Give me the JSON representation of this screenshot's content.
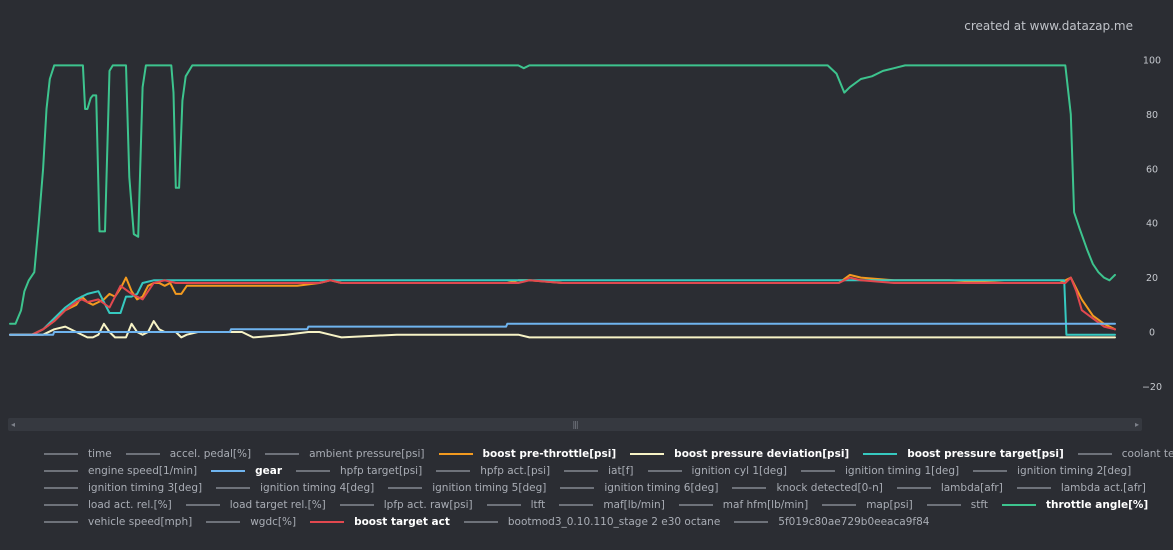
{
  "credit": "created at www.datazap.me",
  "scrollbar": {
    "left_arrow": "◂",
    "right_arrow": "▸",
    "grip": "|||"
  },
  "legend": {
    "rows": [
      [
        {
          "label": "time",
          "active": false,
          "color": "#6e727a"
        },
        {
          "label": "accel. pedal[%]",
          "active": false,
          "color": "#6e727a"
        },
        {
          "label": "ambient pressure[psi]",
          "active": false,
          "color": "#6e727a"
        },
        {
          "label": "boost pre-throttle[psi]",
          "active": true,
          "color": "#f39a1f"
        },
        {
          "label": "boost pressure deviation[psi]",
          "active": true,
          "color": "#f7f3c6"
        },
        {
          "label": "boost pressure target[psi]",
          "active": true,
          "color": "#36c9c0"
        },
        {
          "label": "coolant temp[f]",
          "active": false,
          "color": "#6e727a"
        }
      ],
      [
        {
          "label": "engine speed[1/min]",
          "active": false,
          "color": "#6e727a"
        },
        {
          "label": "gear",
          "active": true,
          "color": "#6fb4ef"
        },
        {
          "label": "hpfp target[psi]",
          "active": false,
          "color": "#6e727a"
        },
        {
          "label": "hpfp act.[psi]",
          "active": false,
          "color": "#6e727a"
        },
        {
          "label": "iat[f]",
          "active": false,
          "color": "#6e727a"
        },
        {
          "label": "ignition cyl 1[deg]",
          "active": false,
          "color": "#6e727a"
        },
        {
          "label": "ignition timing 1[deg]",
          "active": false,
          "color": "#6e727a"
        },
        {
          "label": "ignition timing 2[deg]",
          "active": false,
          "color": "#6e727a"
        }
      ],
      [
        {
          "label": "ignition timing 3[deg]",
          "active": false,
          "color": "#6e727a"
        },
        {
          "label": "ignition timing 4[deg]",
          "active": false,
          "color": "#6e727a"
        },
        {
          "label": "ignition timing 5[deg]",
          "active": false,
          "color": "#6e727a"
        },
        {
          "label": "ignition timing 6[deg]",
          "active": false,
          "color": "#6e727a"
        },
        {
          "label": "knock detected[0-n]",
          "active": false,
          "color": "#6e727a"
        },
        {
          "label": "lambda[afr]",
          "active": false,
          "color": "#6e727a"
        },
        {
          "label": "lambda act.[afr]",
          "active": false,
          "color": "#6e727a"
        }
      ],
      [
        {
          "label": "load act. rel.[%]",
          "active": false,
          "color": "#6e727a"
        },
        {
          "label": "load target rel.[%]",
          "active": false,
          "color": "#6e727a"
        },
        {
          "label": "lpfp act. raw[psi]",
          "active": false,
          "color": "#6e727a"
        },
        {
          "label": "ltft",
          "active": false,
          "color": "#6e727a"
        },
        {
          "label": "maf[lb/min]",
          "active": false,
          "color": "#6e727a"
        },
        {
          "label": "maf hfm[lb/min]",
          "active": false,
          "color": "#6e727a"
        },
        {
          "label": "map[psi]",
          "active": false,
          "color": "#6e727a"
        },
        {
          "label": "stft",
          "active": false,
          "color": "#6e727a"
        },
        {
          "label": "throttle angle[%]",
          "active": true,
          "color": "#3dc48e"
        }
      ],
      [
        {
          "label": "vehicle speed[mph]",
          "active": false,
          "color": "#6e727a"
        },
        {
          "label": "wgdc[%]",
          "active": false,
          "color": "#6e727a"
        },
        {
          "label": "boost target act",
          "active": true,
          "color": "#e2484f"
        },
        {
          "label": "bootmod3_0.10.110_stage 2 e30 octane",
          "active": false,
          "color": "#6e727a"
        },
        {
          "label": "5f019c80ae729b0eeaca9f84",
          "active": false,
          "color": "#6e727a"
        }
      ]
    ]
  },
  "chart_data": {
    "type": "line",
    "title": "",
    "xlabel": "",
    "ylabel": "",
    "x_range": [
      0,
      100
    ],
    "ylim": [
      -30,
      103
    ],
    "y_ticks": [
      100,
      80,
      60,
      40,
      20,
      0,
      -20
    ],
    "y_axis_side": "right",
    "grid": false,
    "legend_position": "bottom",
    "series": [
      {
        "name": "throttle angle[%]",
        "color": "#3dc48e",
        "x": [
          0,
          0.5,
          1.0,
          1.3,
          1.7,
          2.2,
          2.6,
          3.0,
          3.3,
          3.6,
          4.0,
          4.3,
          4.7,
          5.2,
          6.0,
          6.6,
          6.8,
          7.0,
          7.3,
          7.5,
          7.8,
          8.1,
          8.6,
          9.0,
          9.3,
          10.0,
          10.5,
          10.8,
          11.2,
          11.6,
          12.0,
          12.3,
          12.8,
          13.3,
          14.0,
          14.6,
          14.8,
          15.0,
          15.3,
          15.6,
          15.9,
          16.5,
          20,
          30,
          40,
          46,
          46.5,
          47,
          55,
          65,
          74,
          74.8,
          75.5,
          76,
          77,
          78,
          79,
          80,
          81,
          90,
          95.5,
          96,
          96.3,
          96.8,
          97.5,
          98.0,
          98.5,
          99.0,
          99.5,
          100
        ],
        "y": [
          3,
          3,
          8,
          15,
          19,
          22,
          40,
          60,
          82,
          93,
          98,
          98,
          98,
          98,
          98,
          98,
          82,
          82,
          86,
          87,
          87,
          37,
          37,
          96,
          98,
          98,
          98,
          57,
          36,
          35,
          90,
          98,
          98,
          98,
          98,
          98,
          88,
          53,
          53,
          85,
          94,
          98,
          98,
          98,
          98,
          98,
          97,
          98,
          98,
          98,
          98,
          95,
          88,
          90,
          93,
          94,
          96,
          97,
          98,
          98,
          98,
          80,
          44,
          38,
          30,
          25,
          22,
          20,
          19,
          21
        ]
      },
      {
        "name": "boost pre-throttle[psi]",
        "color": "#f39a1f",
        "x": [
          0,
          2,
          3,
          4,
          5,
          6,
          6.5,
          7,
          7.5,
          8,
          8.5,
          9,
          9.5,
          10,
          10.5,
          11,
          11.5,
          12,
          12.5,
          13,
          13.5,
          14,
          14.5,
          15,
          15.5,
          16,
          17,
          19,
          22,
          26,
          28,
          29,
          30,
          35,
          40,
          45,
          46,
          47,
          50,
          60,
          70,
          75,
          76,
          77,
          80,
          85,
          90,
          95,
          96,
          97,
          98,
          99,
          100
        ],
        "y": [
          -1,
          -1,
          1,
          4,
          8,
          10,
          13,
          11,
          10,
          11,
          12,
          14,
          13,
          16,
          20,
          15,
          12,
          13,
          17,
          18,
          18,
          17,
          18,
          14,
          14,
          17,
          17,
          17,
          17,
          17,
          18,
          19,
          18,
          18,
          18,
          18,
          19,
          19,
          18,
          18,
          18,
          18,
          21,
          20,
          19,
          19,
          18,
          18,
          20,
          12,
          6,
          3,
          1
        ]
      },
      {
        "name": "boost pressure target[psi]",
        "color": "#36c9c0",
        "x": [
          0,
          2,
          3,
          4,
          5,
          6,
          7,
          8,
          9,
          10,
          10.5,
          11,
          11.5,
          12,
          13,
          14,
          15,
          20,
          30,
          40,
          50,
          60,
          70,
          80,
          90,
          95,
          95.4,
          95.6,
          100
        ],
        "y": [
          -1,
          -1,
          1,
          5,
          9,
          12,
          14,
          15,
          7,
          7,
          13,
          13,
          14,
          18,
          19,
          19,
          19,
          19,
          19,
          19,
          19,
          19,
          19,
          19,
          19,
          19,
          19,
          -1,
          -1
        ]
      },
      {
        "name": "boost target act",
        "color": "#e2484f",
        "x": [
          0,
          2,
          3,
          4,
          5,
          6,
          6.5,
          7,
          8,
          9,
          10,
          11,
          12,
          13,
          14,
          15,
          17,
          20,
          25,
          28,
          29,
          30,
          35,
          40,
          45,
          46,
          47,
          50,
          60,
          70,
          75,
          76,
          77,
          80,
          90,
          95,
          95.5,
          96,
          96.5,
          97,
          98,
          99,
          100
        ],
        "y": [
          -1,
          -1,
          1,
          4,
          8,
          11,
          12,
          11,
          12,
          9,
          17,
          14,
          12,
          18,
          19,
          18,
          18,
          18,
          18,
          18,
          19,
          18,
          18,
          18,
          18,
          18,
          19,
          18,
          18,
          18,
          18,
          20,
          19,
          18,
          18,
          18,
          18,
          20,
          15,
          8,
          5,
          2,
          1
        ]
      },
      {
        "name": "boost pressure deviation[psi]",
        "color": "#f7f3c6",
        "x": [
          0,
          3,
          4,
          5,
          6,
          7,
          7.5,
          8,
          8.5,
          9,
          9.5,
          10,
          10.5,
          11,
          11.5,
          12,
          12.5,
          13,
          13.5,
          14,
          14.5,
          15,
          15.5,
          16,
          17,
          20,
          21,
          22,
          25,
          27,
          28,
          29,
          30,
          35,
          40,
          45,
          46,
          47,
          50,
          55,
          60,
          70,
          74,
          75,
          80,
          90,
          95,
          100
        ],
        "y": [
          -1,
          -1,
          1,
          2,
          0,
          -2,
          -2,
          -1,
          3,
          0,
          -2,
          -2,
          -2,
          3,
          0,
          -1,
          0,
          4,
          1,
          0,
          0,
          0,
          -2,
          -1,
          0,
          0,
          0,
          -2,
          -1,
          0,
          0,
          -1,
          -2,
          -1,
          -1,
          -1,
          -1,
          -2,
          -2,
          -2,
          -2,
          -2,
          -2,
          -2,
          -2,
          -2,
          -2,
          -2
        ]
      },
      {
        "name": "gear",
        "color": "#6fb4ef",
        "x": [
          0,
          3.9,
          4,
          19.9,
          20,
          26.9,
          27,
          44.9,
          45,
          100
        ],
        "y": [
          -1,
          -1,
          0,
          0,
          1,
          1,
          2,
          2,
          3,
          3
        ]
      }
    ]
  }
}
